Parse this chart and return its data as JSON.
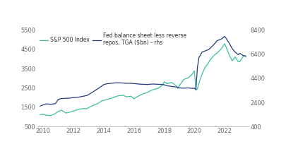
{
  "sp500_label": "S&P 500 Index",
  "fed_label": "Fed balance sheet less reverse\nrepos, TGA ($bn) - rhs",
  "sp500_color": "#3dbfa0",
  "fed_color": "#253a7e",
  "background_color": "#ffffff",
  "left_ylim": [
    500,
    5500
  ],
  "right_ylim": [
    400,
    8400
  ],
  "left_yticks": [
    500,
    1500,
    2500,
    3500,
    4500,
    5500
  ],
  "right_yticks": [
    400,
    2400,
    4400,
    6400,
    8400
  ],
  "xticks": [
    2010,
    2012,
    2014,
    2016,
    2018,
    2020,
    2022
  ],
  "xlim": [
    2009.6,
    2023.6
  ],
  "sp500_data": [
    [
      2009.8,
      1115
    ],
    [
      2010.0,
      1140
    ],
    [
      2010.2,
      1090
    ],
    [
      2010.5,
      1070
    ],
    [
      2010.8,
      1180
    ],
    [
      2011.0,
      1290
    ],
    [
      2011.2,
      1350
    ],
    [
      2011.5,
      1200
    ],
    [
      2011.8,
      1260
    ],
    [
      2012.0,
      1310
    ],
    [
      2012.3,
      1390
    ],
    [
      2012.6,
      1430
    ],
    [
      2012.9,
      1430
    ],
    [
      2013.0,
      1480
    ],
    [
      2013.3,
      1600
    ],
    [
      2013.6,
      1690
    ],
    [
      2013.9,
      1840
    ],
    [
      2014.0,
      1850
    ],
    [
      2014.2,
      1900
    ],
    [
      2014.5,
      1960
    ],
    [
      2014.8,
      2050
    ],
    [
      2015.0,
      2100
    ],
    [
      2015.3,
      2120
    ],
    [
      2015.5,
      2040
    ],
    [
      2015.8,
      2070
    ],
    [
      2016.0,
      1940
    ],
    [
      2016.3,
      2080
    ],
    [
      2016.6,
      2190
    ],
    [
      2016.9,
      2270
    ],
    [
      2017.0,
      2320
    ],
    [
      2017.3,
      2420
    ],
    [
      2017.6,
      2480
    ],
    [
      2017.9,
      2650
    ],
    [
      2018.0,
      2820
    ],
    [
      2018.2,
      2720
    ],
    [
      2018.5,
      2780
    ],
    [
      2018.8,
      2610
    ],
    [
      2018.9,
      2470
    ],
    [
      2019.0,
      2620
    ],
    [
      2019.3,
      2940
    ],
    [
      2019.6,
      3020
    ],
    [
      2019.9,
      3250
    ],
    [
      2020.0,
      3380
    ],
    [
      2020.1,
      2380
    ],
    [
      2020.2,
      2450
    ],
    [
      2020.3,
      2750
    ],
    [
      2020.5,
      3200
    ],
    [
      2020.7,
      3550
    ],
    [
      2020.9,
      3750
    ],
    [
      2021.0,
      3900
    ],
    [
      2021.3,
      4180
    ],
    [
      2021.5,
      4300
    ],
    [
      2021.8,
      4530
    ],
    [
      2022.0,
      4790
    ],
    [
      2022.1,
      4600
    ],
    [
      2022.3,
      4200
    ],
    [
      2022.5,
      3900
    ],
    [
      2022.7,
      4100
    ],
    [
      2022.9,
      3850
    ],
    [
      2023.0,
      3850
    ],
    [
      2023.1,
      3980
    ],
    [
      2023.2,
      4100
    ],
    [
      2023.3,
      4180
    ],
    [
      2023.4,
      4150
    ]
  ],
  "fed_data": [
    [
      2009.8,
      2100
    ],
    [
      2010.0,
      2200
    ],
    [
      2010.2,
      2280
    ],
    [
      2010.5,
      2250
    ],
    [
      2010.8,
      2300
    ],
    [
      2011.0,
      2650
    ],
    [
      2011.2,
      2720
    ],
    [
      2011.5,
      2740
    ],
    [
      2011.8,
      2760
    ],
    [
      2012.0,
      2800
    ],
    [
      2012.3,
      2830
    ],
    [
      2012.6,
      2900
    ],
    [
      2012.9,
      2980
    ],
    [
      2013.0,
      3050
    ],
    [
      2013.3,
      3280
    ],
    [
      2013.6,
      3520
    ],
    [
      2013.9,
      3780
    ],
    [
      2014.0,
      3870
    ],
    [
      2014.2,
      3940
    ],
    [
      2014.5,
      3980
    ],
    [
      2014.8,
      4020
    ],
    [
      2015.0,
      4020
    ],
    [
      2015.3,
      4000
    ],
    [
      2015.5,
      3980
    ],
    [
      2015.8,
      3980
    ],
    [
      2016.0,
      3960
    ],
    [
      2016.3,
      3920
    ],
    [
      2016.6,
      3900
    ],
    [
      2016.9,
      3880
    ],
    [
      2017.0,
      3900
    ],
    [
      2017.3,
      3920
    ],
    [
      2017.6,
      3900
    ],
    [
      2017.9,
      3880
    ],
    [
      2018.0,
      3860
    ],
    [
      2018.2,
      3780
    ],
    [
      2018.5,
      3720
    ],
    [
      2018.8,
      3680
    ],
    [
      2018.9,
      3640
    ],
    [
      2019.0,
      3600
    ],
    [
      2019.3,
      3580
    ],
    [
      2019.6,
      3600
    ],
    [
      2019.9,
      3560
    ],
    [
      2020.0,
      3580
    ],
    [
      2020.1,
      3460
    ],
    [
      2020.2,
      5300
    ],
    [
      2020.3,
      6100
    ],
    [
      2020.5,
      6550
    ],
    [
      2020.7,
      6650
    ],
    [
      2020.9,
      6750
    ],
    [
      2021.0,
      6820
    ],
    [
      2021.3,
      7200
    ],
    [
      2021.5,
      7500
    ],
    [
      2021.8,
      7650
    ],
    [
      2022.0,
      7850
    ],
    [
      2022.1,
      7700
    ],
    [
      2022.3,
      7300
    ],
    [
      2022.5,
      6850
    ],
    [
      2022.7,
      6550
    ],
    [
      2022.9,
      6350
    ],
    [
      2023.0,
      6450
    ],
    [
      2023.1,
      6380
    ],
    [
      2023.2,
      6300
    ],
    [
      2023.3,
      6250
    ],
    [
      2023.4,
      6200
    ]
  ]
}
